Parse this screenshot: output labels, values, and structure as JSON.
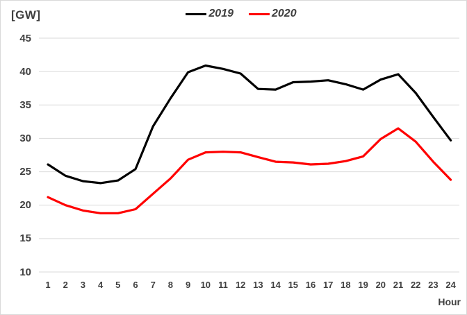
{
  "chart": {
    "unit_label": "[GW]",
    "x_axis_label": "Hour",
    "background_color": "#ffffff",
    "frame_color": "#d9d9d9",
    "gridline_color": "#d9d9d9",
    "text_color": "#404040"
  },
  "chart_data": {
    "type": "line",
    "title": "",
    "xlabel": "Hour",
    "ylabel": "[GW]",
    "x": [
      1,
      2,
      3,
      4,
      5,
      6,
      7,
      8,
      9,
      10,
      11,
      12,
      13,
      14,
      15,
      16,
      17,
      18,
      19,
      20,
      21,
      22,
      23,
      24
    ],
    "xtick_labels": [
      "1",
      "2",
      "3",
      "4",
      "5",
      "6",
      "7",
      "8",
      "9",
      "10",
      "11",
      "12",
      "13",
      "14",
      "15",
      "16",
      "17",
      "18",
      "19",
      "20",
      "21",
      "22",
      "23",
      "24"
    ],
    "ylim": [
      10,
      45
    ],
    "yticks": [
      10,
      15,
      20,
      25,
      30,
      35,
      40,
      45
    ],
    "grid": true,
    "legend_position": "top-center",
    "series": [
      {
        "name": "2019",
        "color": "#000000",
        "values": [
          26.1,
          24.4,
          23.6,
          23.3,
          23.7,
          25.4,
          31.8,
          36.0,
          39.9,
          40.9,
          40.4,
          39.7,
          37.4,
          37.3,
          38.4,
          38.5,
          38.7,
          38.1,
          37.3,
          38.8,
          39.6,
          36.8,
          33.2,
          29.7
        ]
      },
      {
        "name": "2020",
        "color": "#ff0000",
        "values": [
          21.2,
          20.0,
          19.2,
          18.8,
          18.8,
          19.4,
          21.7,
          24.0,
          26.8,
          27.9,
          28.0,
          27.9,
          27.2,
          26.5,
          26.4,
          26.1,
          26.2,
          26.6,
          27.3,
          29.9,
          31.5,
          29.5,
          26.5,
          23.8
        ]
      }
    ]
  }
}
